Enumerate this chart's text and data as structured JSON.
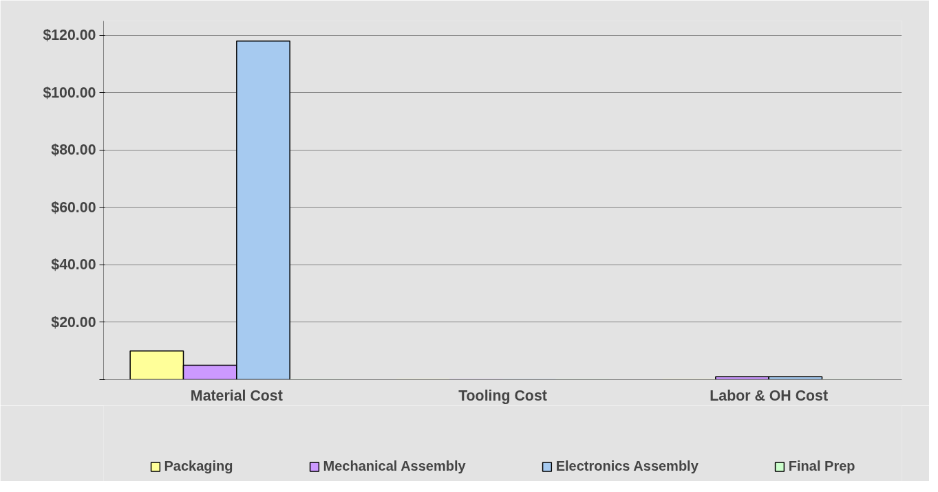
{
  "chart_data": {
    "type": "bar",
    "categories": [
      "Material Cost",
      "Tooling Cost",
      "Labor & OH Cost"
    ],
    "series": [
      {
        "name": "Packaging",
        "color": "#ffff99",
        "values": [
          10,
          0,
          0
        ]
      },
      {
        "name": "Mechanical Assembly",
        "color": "#cc99ff",
        "values": [
          5,
          0,
          1
        ]
      },
      {
        "name": "Electronics Assembly",
        "color": "#a6caf0",
        "values": [
          118,
          0,
          1
        ]
      },
      {
        "name": "Final Prep",
        "color": "#ccffcc",
        "values": [
          0,
          0,
          0
        ]
      }
    ],
    "ylim": [
      0,
      125
    ],
    "yticks": [
      {
        "value": 0,
        "label": null
      },
      {
        "value": 20,
        "label": "$20.00"
      },
      {
        "value": 40,
        "label": "$40.00"
      },
      {
        "value": 60,
        "label": "$60.00"
      },
      {
        "value": 80,
        "label": "$80.00"
      },
      {
        "value": 100,
        "label": "$100.00"
      },
      {
        "value": 120,
        "label": "$120.00"
      }
    ],
    "grid": "y",
    "legend": "bottom"
  }
}
